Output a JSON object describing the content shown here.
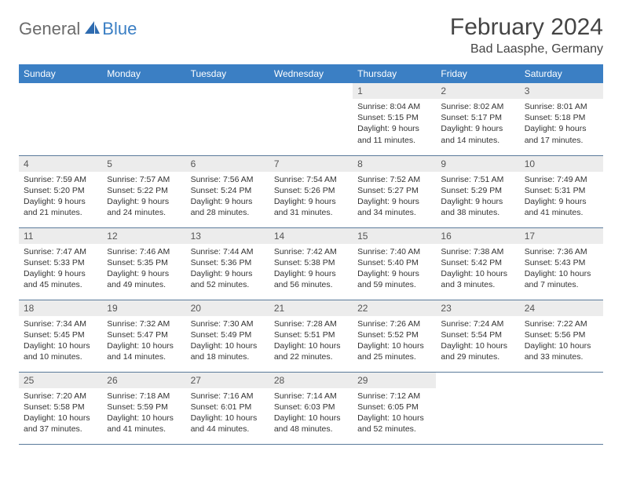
{
  "logo": {
    "part1": "General",
    "part2": "Blue"
  },
  "title": "February 2024",
  "location": "Bad Laasphe, Germany",
  "colors": {
    "header_bg": "#3b7fc4",
    "header_text": "#ffffff",
    "daynum_bg": "#ececec",
    "row_divider": "#5a7a9a",
    "logo_gray": "#6b6b6b",
    "logo_blue": "#3b7fc4"
  },
  "weekdays": [
    "Sunday",
    "Monday",
    "Tuesday",
    "Wednesday",
    "Thursday",
    "Friday",
    "Saturday"
  ],
  "days": [
    {
      "n": "1",
      "sr": "8:04 AM",
      "ss": "5:15 PM",
      "dl": "9 hours and 11 minutes."
    },
    {
      "n": "2",
      "sr": "8:02 AM",
      "ss": "5:17 PM",
      "dl": "9 hours and 14 minutes."
    },
    {
      "n": "3",
      "sr": "8:01 AM",
      "ss": "5:18 PM",
      "dl": "9 hours and 17 minutes."
    },
    {
      "n": "4",
      "sr": "7:59 AM",
      "ss": "5:20 PM",
      "dl": "9 hours and 21 minutes."
    },
    {
      "n": "5",
      "sr": "7:57 AM",
      "ss": "5:22 PM",
      "dl": "9 hours and 24 minutes."
    },
    {
      "n": "6",
      "sr": "7:56 AM",
      "ss": "5:24 PM",
      "dl": "9 hours and 28 minutes."
    },
    {
      "n": "7",
      "sr": "7:54 AM",
      "ss": "5:26 PM",
      "dl": "9 hours and 31 minutes."
    },
    {
      "n": "8",
      "sr": "7:52 AM",
      "ss": "5:27 PM",
      "dl": "9 hours and 34 minutes."
    },
    {
      "n": "9",
      "sr": "7:51 AM",
      "ss": "5:29 PM",
      "dl": "9 hours and 38 minutes."
    },
    {
      "n": "10",
      "sr": "7:49 AM",
      "ss": "5:31 PM",
      "dl": "9 hours and 41 minutes."
    },
    {
      "n": "11",
      "sr": "7:47 AM",
      "ss": "5:33 PM",
      "dl": "9 hours and 45 minutes."
    },
    {
      "n": "12",
      "sr": "7:46 AM",
      "ss": "5:35 PM",
      "dl": "9 hours and 49 minutes."
    },
    {
      "n": "13",
      "sr": "7:44 AM",
      "ss": "5:36 PM",
      "dl": "9 hours and 52 minutes."
    },
    {
      "n": "14",
      "sr": "7:42 AM",
      "ss": "5:38 PM",
      "dl": "9 hours and 56 minutes."
    },
    {
      "n": "15",
      "sr": "7:40 AM",
      "ss": "5:40 PM",
      "dl": "9 hours and 59 minutes."
    },
    {
      "n": "16",
      "sr": "7:38 AM",
      "ss": "5:42 PM",
      "dl": "10 hours and 3 minutes."
    },
    {
      "n": "17",
      "sr": "7:36 AM",
      "ss": "5:43 PM",
      "dl": "10 hours and 7 minutes."
    },
    {
      "n": "18",
      "sr": "7:34 AM",
      "ss": "5:45 PM",
      "dl": "10 hours and 10 minutes."
    },
    {
      "n": "19",
      "sr": "7:32 AM",
      "ss": "5:47 PM",
      "dl": "10 hours and 14 minutes."
    },
    {
      "n": "20",
      "sr": "7:30 AM",
      "ss": "5:49 PM",
      "dl": "10 hours and 18 minutes."
    },
    {
      "n": "21",
      "sr": "7:28 AM",
      "ss": "5:51 PM",
      "dl": "10 hours and 22 minutes."
    },
    {
      "n": "22",
      "sr": "7:26 AM",
      "ss": "5:52 PM",
      "dl": "10 hours and 25 minutes."
    },
    {
      "n": "23",
      "sr": "7:24 AM",
      "ss": "5:54 PM",
      "dl": "10 hours and 29 minutes."
    },
    {
      "n": "24",
      "sr": "7:22 AM",
      "ss": "5:56 PM",
      "dl": "10 hours and 33 minutes."
    },
    {
      "n": "25",
      "sr": "7:20 AM",
      "ss": "5:58 PM",
      "dl": "10 hours and 37 minutes."
    },
    {
      "n": "26",
      "sr": "7:18 AM",
      "ss": "5:59 PM",
      "dl": "10 hours and 41 minutes."
    },
    {
      "n": "27",
      "sr": "7:16 AM",
      "ss": "6:01 PM",
      "dl": "10 hours and 44 minutes."
    },
    {
      "n": "28",
      "sr": "7:14 AM",
      "ss": "6:03 PM",
      "dl": "10 hours and 48 minutes."
    },
    {
      "n": "29",
      "sr": "7:12 AM",
      "ss": "6:05 PM",
      "dl": "10 hours and 52 minutes."
    }
  ],
  "labels": {
    "sunrise": "Sunrise:",
    "sunset": "Sunset:",
    "daylight": "Daylight:"
  },
  "first_weekday_index": 4
}
